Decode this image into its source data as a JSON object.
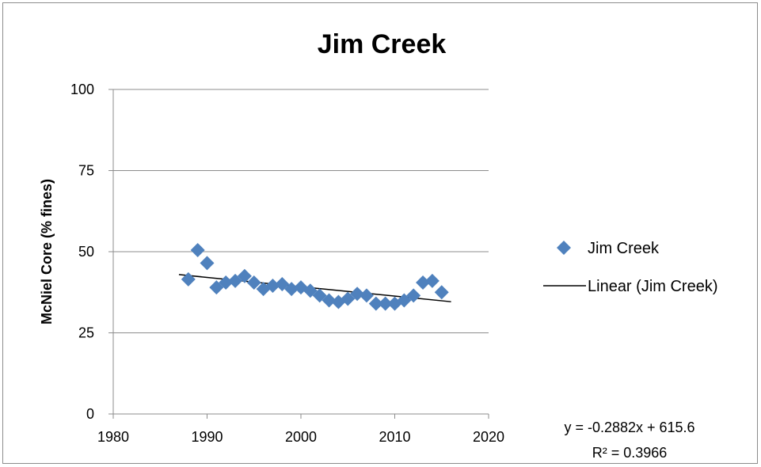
{
  "chart_data": {
    "type": "scatter",
    "title": "Jim Creek",
    "xlabel": "",
    "ylabel": "McNiel Core (% fines)",
    "xlim": [
      1980,
      2020
    ],
    "ylim": [
      0,
      100
    ],
    "xticks": [
      1980,
      1990,
      2000,
      2010,
      2020
    ],
    "yticks": [
      0,
      25,
      50,
      75,
      100
    ],
    "grid": "horizontal",
    "legend_position": "right",
    "series": [
      {
        "name": "Jim Creek",
        "color": "#4F81BD",
        "marker": "diamond",
        "x": [
          1988,
          1989,
          1990,
          1991,
          1992,
          1993,
          1994,
          1995,
          1996,
          1997,
          1998,
          1999,
          2000,
          2001,
          2002,
          2003,
          2004,
          2005,
          2006,
          2007,
          2008,
          2009,
          2010,
          2011,
          2012,
          2013,
          2014,
          2015
        ],
        "y": [
          41.5,
          50.5,
          46.5,
          39.0,
          40.5,
          41.0,
          42.5,
          40.5,
          38.5,
          39.5,
          40.0,
          38.5,
          39.0,
          38.0,
          36.5,
          35.0,
          34.5,
          35.5,
          37.0,
          36.5,
          34.0,
          34.0,
          34.0,
          35.0,
          36.5,
          40.5,
          41.0,
          37.5
        ]
      }
    ],
    "trendline": {
      "name": "Linear (Jim Creek)",
      "color": "#000000",
      "slope": -0.2882,
      "intercept": 615.6,
      "x_range": [
        1987,
        2016
      ],
      "equation": "y = -0.2882x + 615.6",
      "r_squared": "R² = 0.3966"
    }
  }
}
